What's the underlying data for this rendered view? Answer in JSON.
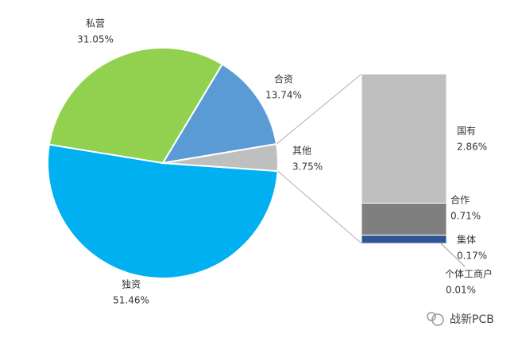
{
  "chart_data": {
    "type": "pie",
    "categories": [
      "独资",
      "私营",
      "合资",
      "其他"
    ],
    "values": [
      51.46,
      31.05,
      13.74,
      3.75
    ],
    "value_labels": [
      "51.46%",
      "31.05%",
      "13.74%",
      "3.75%"
    ],
    "colors": [
      "#00b0f0",
      "#92d050",
      "#5b9bd5",
      "#bfbfbf"
    ],
    "breakdown": {
      "type": "bar",
      "categories": [
        "国有",
        "合作",
        "集体",
        "个体工商户"
      ],
      "values": [
        2.86,
        0.71,
        0.17,
        0.01
      ],
      "value_labels": [
        "2.86%",
        "0.71%",
        "0.17%",
        "0.01%"
      ],
      "colors": [
        "#bfbfbf",
        "#7f7f7f",
        "#2f5597",
        "#1f3864"
      ]
    }
  },
  "watermark": "战新PCB"
}
